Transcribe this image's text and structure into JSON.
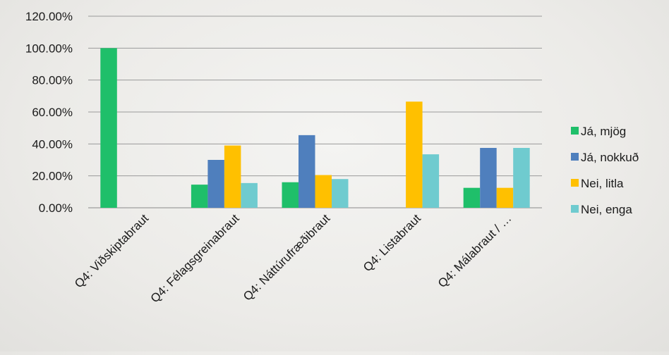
{
  "chart_data": {
    "type": "bar",
    "title": "",
    "xlabel": "",
    "ylabel": "",
    "ylim": [
      0,
      1.2
    ],
    "y_tick_step": 0.2,
    "y_tick_format": "percent_2dp",
    "y_tick_labels": [
      "0.00%",
      "20.00%",
      "40.00%",
      "60.00%",
      "80.00%",
      "100.00%",
      "120.00%"
    ],
    "grid": true,
    "legend_position": "right",
    "categories": [
      "Q4: Viðskiptabraut",
      "Q4: Félagsgreinabraut",
      "Q4: Náttúrufræðibraut",
      "Q4: Listabraut",
      "Q4: Málabraut / …"
    ],
    "series": [
      {
        "name": "Já, mjög",
        "color": "#1fbf6a",
        "values": [
          1.0,
          0.145,
          0.16,
          0.0,
          0.125
        ]
      },
      {
        "name": "Já, nokkuð",
        "color": "#4f7fbd",
        "values": [
          0.0,
          0.3,
          0.455,
          0.0,
          0.375
        ]
      },
      {
        "name": "Nei, litla",
        "color": "#ffc000",
        "values": [
          0.0,
          0.39,
          0.205,
          0.665,
          0.125
        ]
      },
      {
        "name": "Nei, enga",
        "color": "#6fcbcf",
        "values": [
          0.0,
          0.155,
          0.18,
          0.335,
          0.375
        ]
      }
    ]
  }
}
